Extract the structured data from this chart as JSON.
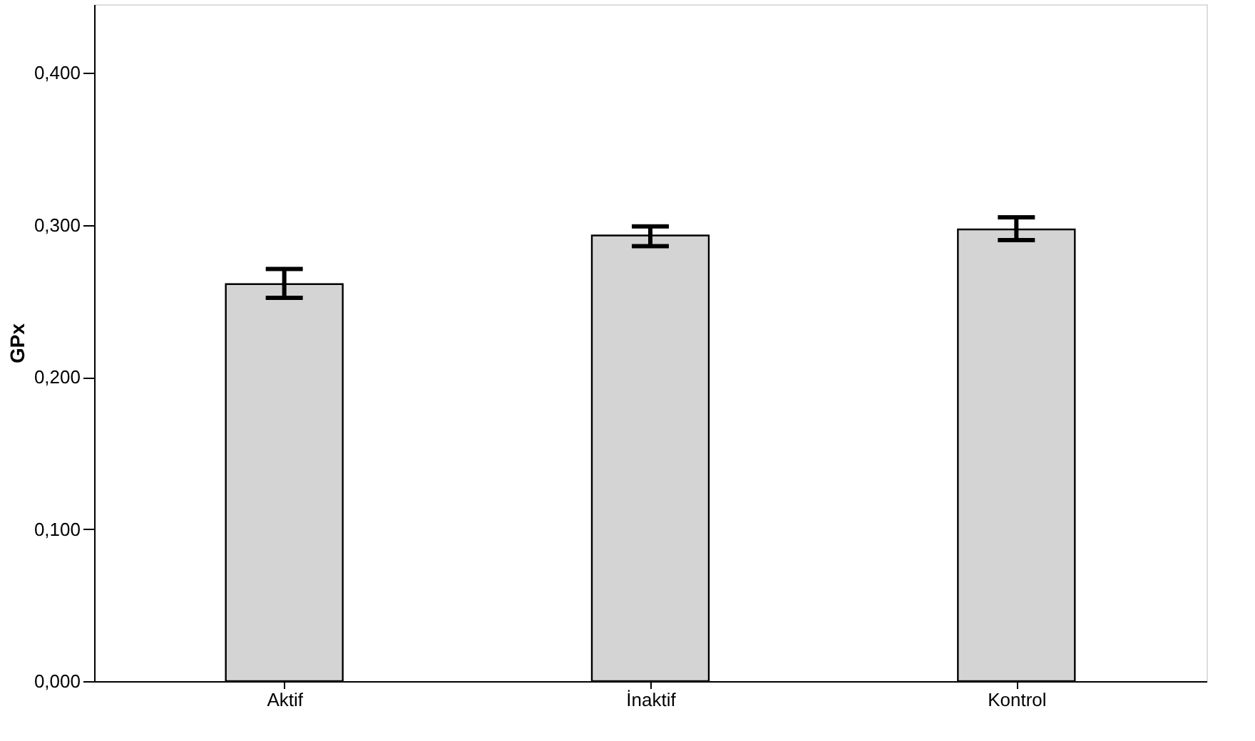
{
  "chart_data": {
    "type": "bar",
    "ylabel": "GPx",
    "categories": [
      "Aktif",
      "İnaktif",
      "Kontrol"
    ],
    "values": [
      0.261,
      0.293,
      0.297
    ],
    "errors": [
      [
        0.252,
        0.271
      ],
      [
        0.286,
        0.299
      ],
      [
        0.29,
        0.305
      ]
    ],
    "color": "#d4d4d4",
    "ylim": [
      0,
      0.445
    ],
    "yticks": [
      {
        "value": 0,
        "label": "0,000"
      },
      {
        "value": 0.1,
        "label": "0,100"
      },
      {
        "value": 0.2,
        "label": "0,200"
      },
      {
        "value": 0.3,
        "label": "0,300"
      },
      {
        "value": 0.4,
        "label": "0,400"
      }
    ],
    "grid": false
  }
}
